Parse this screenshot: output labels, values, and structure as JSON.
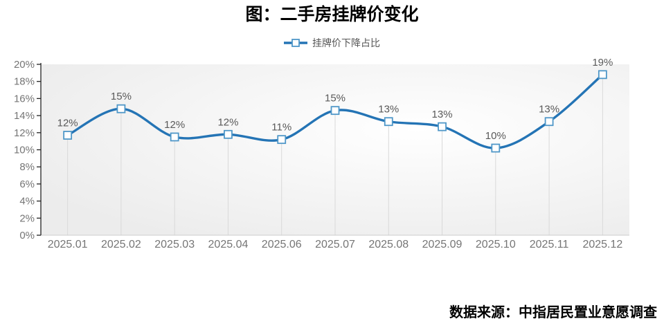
{
  "page": {
    "title": "图：二手房挂牌价变化",
    "source": "数据来源：中指居民置业意愿调查"
  },
  "legend": {
    "label": "挂牌价下降占比"
  },
  "colors": {
    "line": "#2474b5",
    "marker_stroke": "#4f97c8",
    "marker_fill": "#ffffff",
    "y_axis_line": "#222222",
    "x_axis_line": "#cccccc",
    "drop_line": "#d9d9d9",
    "tick_label": "#757575",
    "point_label": "#595959",
    "title": "#000000",
    "legend_text": "#555555",
    "source_text": "#000000",
    "plot_bg_center": "#ffffff",
    "plot_bg_edge": "#ececec"
  },
  "chart_data": {
    "type": "line",
    "smooth": true,
    "title": "图：二手房挂牌价变化",
    "legend_entries": [
      "挂牌价下降占比"
    ],
    "legend_position": "top-center",
    "categories": [
      "2025.01",
      "2025.02",
      "2025.03",
      "2025.04",
      "2025.06",
      "2025.07",
      "2025.08",
      "2025.09",
      "2025.10",
      "2025.11",
      "2025.12"
    ],
    "series": [
      {
        "name": "挂牌价下降占比",
        "values": [
          11.7,
          14.8,
          11.5,
          11.8,
          11.2,
          14.6,
          13.3,
          12.7,
          10.2,
          13.3,
          18.8
        ],
        "point_labels": [
          "12%",
          "15%",
          "12%",
          "12%",
          "11%",
          "15%",
          "13%",
          "13%",
          "10%",
          "13%",
          "19%"
        ]
      }
    ],
    "xlabel": "",
    "ylabel": "",
    "ylim": [
      0,
      20
    ],
    "ytick_step": 2,
    "ytick_suffix": "%",
    "grid": "drop-lines-only",
    "marker": "open-square"
  }
}
